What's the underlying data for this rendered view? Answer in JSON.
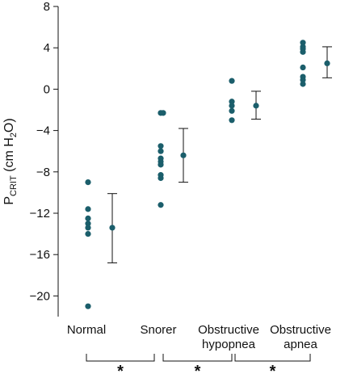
{
  "chart_data": {
    "type": "scatter",
    "ylabel": {
      "main": "P",
      "sub": "CRIT",
      "rest": " (cm H",
      "sub2": "2",
      "end": "O)"
    },
    "ylim": [
      -22,
      8
    ],
    "yticks": [
      8,
      4,
      0,
      -4,
      -8,
      -12,
      -16,
      -20
    ],
    "ytick_labels": [
      "8",
      "4",
      "0",
      "−4",
      "−8",
      "−12",
      "−16",
      "−20"
    ],
    "grid": false,
    "marker_color": "#1b5e6b",
    "categories": [
      {
        "label_lines": [
          "Normal"
        ],
        "points": [
          -9.0,
          -11.6,
          -12.5,
          -13.0,
          -13.4,
          -14.0,
          -21.0
        ],
        "mean": -13.4,
        "err_low": -16.8,
        "err_high": -10.1
      },
      {
        "label_lines": [
          "Snorer"
        ],
        "points": [
          -2.3,
          -2.3,
          -5.5,
          -6.0,
          -6.7,
          -7.0,
          -7.3,
          -8.3,
          -8.6,
          -11.2
        ],
        "mean": -6.4,
        "err_low": -9.0,
        "err_high": -3.8
      },
      {
        "label_lines": [
          "Obstructive",
          "hypopnea"
        ],
        "points": [
          0.8,
          -1.2,
          -1.6,
          -2.1,
          -3.0
        ],
        "mean": -1.6,
        "err_low": -2.9,
        "err_high": -0.2
      },
      {
        "label_lines": [
          "Obstructive",
          "apnea"
        ],
        "points": [
          4.5,
          4.1,
          3.9,
          3.6,
          2.1,
          1.2,
          0.9,
          0.5
        ],
        "mean": 2.5,
        "err_low": 1.1,
        "err_high": 4.1
      }
    ],
    "significance": [
      {
        "from": 0,
        "to": 1,
        "label": "*"
      },
      {
        "from": 1,
        "to": 2,
        "label": "*"
      },
      {
        "from": 2,
        "to": 3,
        "label": "*"
      }
    ]
  }
}
